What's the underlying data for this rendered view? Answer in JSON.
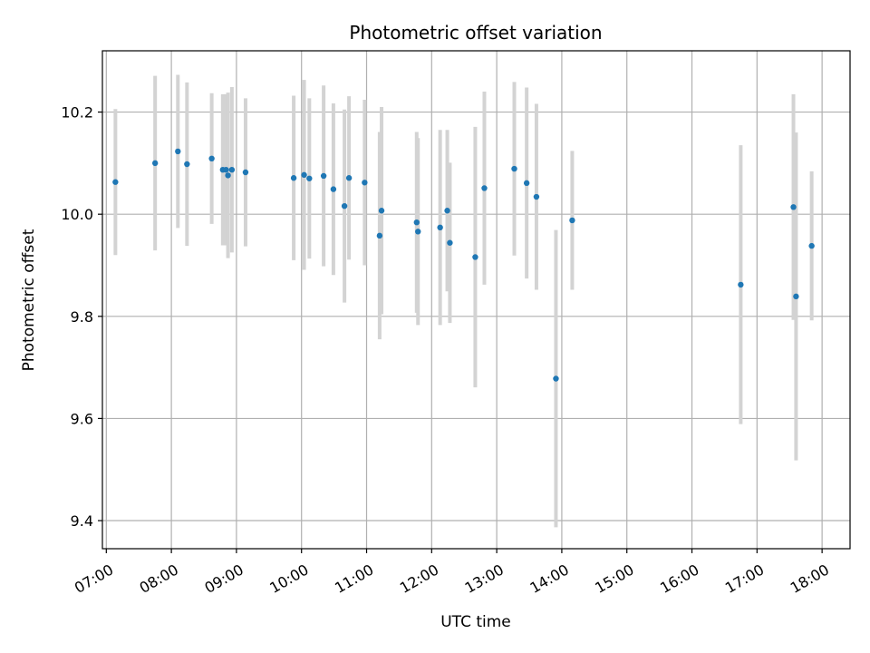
{
  "chart_data": {
    "type": "scatter",
    "title": "Photometric offset variation",
    "xlabel": "UTC time",
    "ylabel": "Photometric offset",
    "x_unit": "hours UTC",
    "xlim": [
      6.94,
      18.43
    ],
    "ylim": [
      9.345,
      10.32
    ],
    "x_ticks": [
      {
        "value": 7,
        "label": "07:00"
      },
      {
        "value": 8,
        "label": "08:00"
      },
      {
        "value": 9,
        "label": "09:00"
      },
      {
        "value": 10,
        "label": "10:00"
      },
      {
        "value": 11,
        "label": "11:00"
      },
      {
        "value": 12,
        "label": "12:00"
      },
      {
        "value": 13,
        "label": "13:00"
      },
      {
        "value": 14,
        "label": "14:00"
      },
      {
        "value": 15,
        "label": "15:00"
      },
      {
        "value": 16,
        "label": "16:00"
      },
      {
        "value": 17,
        "label": "17:00"
      },
      {
        "value": 18,
        "label": "18:00"
      }
    ],
    "y_ticks": [
      {
        "value": 9.4,
        "label": "9.4"
      },
      {
        "value": 9.6,
        "label": "9.6"
      },
      {
        "value": 9.8,
        "label": "9.8"
      },
      {
        "value": 10.0,
        "label": "10.0"
      },
      {
        "value": 10.2,
        "label": "10.2"
      }
    ],
    "grid": true,
    "point_color": "#1f77b4",
    "errorbar_color": "#d3d3d3",
    "points": [
      {
        "x": 7.14,
        "y": 10.063,
        "err": 0.143
      },
      {
        "x": 7.75,
        "y": 10.1,
        "err": 0.171
      },
      {
        "x": 8.1,
        "y": 10.123,
        "err": 0.15
      },
      {
        "x": 8.24,
        "y": 10.098,
        "err": 0.16
      },
      {
        "x": 8.62,
        "y": 10.109,
        "err": 0.128
      },
      {
        "x": 8.79,
        "y": 10.087,
        "err": 0.148
      },
      {
        "x": 8.84,
        "y": 10.087,
        "err": 0.148
      },
      {
        "x": 8.87,
        "y": 10.076,
        "err": 0.162
      },
      {
        "x": 8.93,
        "y": 10.087,
        "err": 0.162
      },
      {
        "x": 9.14,
        "y": 10.082,
        "err": 0.145
      },
      {
        "x": 9.88,
        "y": 10.071,
        "err": 0.161
      },
      {
        "x": 10.04,
        "y": 10.077,
        "err": 0.186
      },
      {
        "x": 10.12,
        "y": 10.07,
        "err": 0.157
      },
      {
        "x": 10.34,
        "y": 10.075,
        "err": 0.177
      },
      {
        "x": 10.49,
        "y": 10.049,
        "err": 0.168
      },
      {
        "x": 10.66,
        "y": 10.016,
        "err": 0.189
      },
      {
        "x": 10.73,
        "y": 10.071,
        "err": 0.16
      },
      {
        "x": 10.97,
        "y": 10.062,
        "err": 0.162
      },
      {
        "x": 11.2,
        "y": 9.958,
        "err": 0.203
      },
      {
        "x": 11.23,
        "y": 10.007,
        "err": 0.203
      },
      {
        "x": 11.77,
        "y": 9.984,
        "err": 0.177
      },
      {
        "x": 11.79,
        "y": 9.966,
        "err": 0.183
      },
      {
        "x": 12.13,
        "y": 9.974,
        "err": 0.191
      },
      {
        "x": 12.24,
        "y": 10.007,
        "err": 0.158
      },
      {
        "x": 12.28,
        "y": 9.944,
        "err": 0.157
      },
      {
        "x": 12.67,
        "y": 9.916,
        "err": 0.255
      },
      {
        "x": 12.81,
        "y": 10.051,
        "err": 0.189
      },
      {
        "x": 13.27,
        "y": 10.089,
        "err": 0.17
      },
      {
        "x": 13.46,
        "y": 10.061,
        "err": 0.187
      },
      {
        "x": 13.61,
        "y": 10.034,
        "err": 0.182
      },
      {
        "x": 13.91,
        "y": 9.678,
        "err": 0.291
      },
      {
        "x": 14.16,
        "y": 9.988,
        "err": 0.136
      },
      {
        "x": 16.75,
        "y": 9.862,
        "err": 0.273
      },
      {
        "x": 17.56,
        "y": 10.014,
        "err": 0.221
      },
      {
        "x": 17.6,
        "y": 9.839,
        "err": 0.321
      },
      {
        "x": 17.84,
        "y": 9.938,
        "err": 0.146
      }
    ]
  }
}
